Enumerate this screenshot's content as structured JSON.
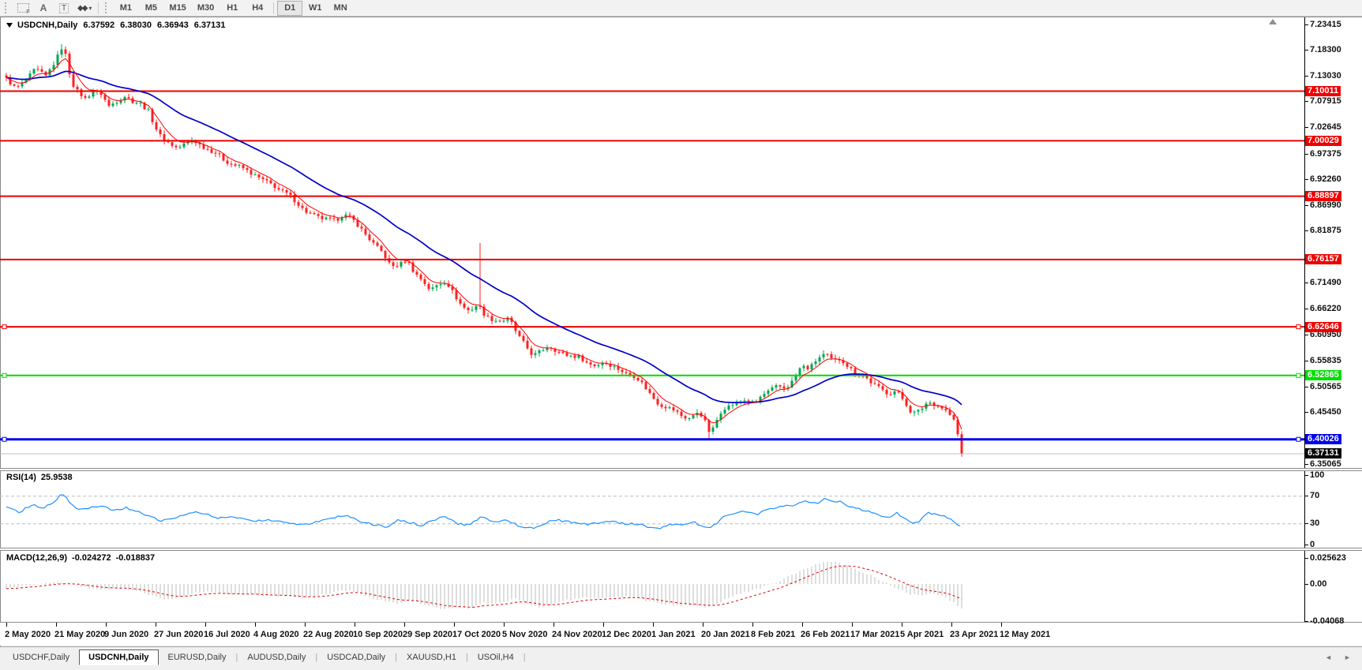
{
  "toolbar": {
    "tools": [
      {
        "id": "snap-grid-f",
        "label": "F"
      },
      {
        "id": "text-label",
        "label": "A"
      },
      {
        "id": "text-box",
        "label": "T"
      },
      {
        "id": "arrow-tools",
        "label": "◆◆",
        "dropdown": "▾"
      }
    ],
    "timeframes": [
      "M1",
      "M5",
      "M15",
      "M30",
      "H1",
      "H4",
      "D1",
      "W1",
      "MN"
    ],
    "active_timeframe": "D1"
  },
  "chart": {
    "symbol": "USDCNH,Daily",
    "ohlc": {
      "open": "6.37592",
      "high": "6.38030",
      "low": "6.36943",
      "close": "6.37131"
    },
    "price_axis": {
      "ticks": [
        "7.23415",
        "7.18300",
        "7.13030",
        "7.07915",
        "7.02645",
        "6.97375",
        "6.92260",
        "6.86990",
        "6.81875",
        "6.71490",
        "6.66220",
        "6.60950",
        "6.55835",
        "6.50565",
        "6.45450",
        "6.35065"
      ]
    },
    "chart_data": {
      "type": "candlestick",
      "symbol": "USDCNH",
      "timeframe": "Daily",
      "y_range": {
        "max": 7.23415,
        "min": 6.35065
      },
      "x_range_dates": [
        "2 May 2020",
        "12 May 2021"
      ],
      "bid": {
        "label": "6.37131",
        "value": 6.37131,
        "chip_bg": "#000000"
      },
      "colors": {
        "up": "#00a651",
        "down": "#ff2020",
        "ma_fast": "#ff0000",
        "ma_slow": "#0000c8",
        "bid_line": "#c0c0c0"
      },
      "horizontal_lines": [
        {
          "label": "7.10011",
          "value": 7.10011,
          "color": "#ee0000",
          "thickness": 2,
          "selected": false
        },
        {
          "label": "7.00029",
          "value": 7.00029,
          "color": "#ee0000",
          "thickness": 2,
          "selected": false
        },
        {
          "label": "6.88897",
          "value": 6.88897,
          "color": "#ee0000",
          "thickness": 2,
          "selected": false
        },
        {
          "label": "6.76157",
          "value": 6.76157,
          "color": "#ee0000",
          "thickness": 2,
          "selected": false
        },
        {
          "label": "6.62646",
          "value": 6.62646,
          "color": "#ee0000",
          "thickness": 2,
          "selected": true
        },
        {
          "label": "6.52865",
          "value": 6.52865,
          "color": "#00dd00",
          "thickness": 2,
          "selected": true
        },
        {
          "label": "6.40026",
          "value": 6.40026,
          "color": "#0000ee",
          "thickness": 3,
          "selected": true
        }
      ],
      "close_path_anchors": [
        [
          8,
          7.125
        ],
        [
          20,
          7.105
        ],
        [
          32,
          7.12
        ],
        [
          45,
          7.145
        ],
        [
          58,
          7.13
        ],
        [
          70,
          7.16
        ],
        [
          78,
          7.187
        ],
        [
          84,
          7.17
        ],
        [
          90,
          7.12
        ],
        [
          98,
          7.1
        ],
        [
          108,
          7.085
        ],
        [
          118,
          7.1
        ],
        [
          128,
          7.095
        ],
        [
          138,
          7.07
        ],
        [
          148,
          7.08
        ],
        [
          158,
          7.09
        ],
        [
          168,
          7.08
        ],
        [
          178,
          7.075
        ],
        [
          188,
          7.06
        ],
        [
          196,
          7.03
        ],
        [
          205,
          7.005
        ],
        [
          215,
          6.995
        ],
        [
          225,
          6.985
        ],
        [
          235,
          6.995
        ],
        [
          245,
          7.002
        ],
        [
          255,
          6.99
        ],
        [
          265,
          6.982
        ],
        [
          275,
          6.975
        ],
        [
          285,
          6.96
        ],
        [
          295,
          6.952
        ],
        [
          305,
          6.948
        ],
        [
          315,
          6.938
        ],
        [
          325,
          6.928
        ],
        [
          335,
          6.92
        ],
        [
          345,
          6.912
        ],
        [
          355,
          6.9
        ],
        [
          365,
          6.893
        ],
        [
          375,
          6.878
        ],
        [
          385,
          6.86
        ],
        [
          395,
          6.852
        ],
        [
          405,
          6.845
        ],
        [
          415,
          6.842
        ],
        [
          425,
          6.84
        ],
        [
          435,
          6.852
        ],
        [
          445,
          6.845
        ],
        [
          455,
          6.828
        ],
        [
          465,
          6.808
        ],
        [
          475,
          6.79
        ],
        [
          485,
          6.775
        ],
        [
          495,
          6.748
        ],
        [
          505,
          6.75
        ],
        [
          515,
          6.762
        ],
        [
          525,
          6.735
        ],
        [
          535,
          6.72
        ],
        [
          545,
          6.7
        ],
        [
          555,
          6.712
        ],
        [
          565,
          6.718
        ],
        [
          575,
          6.692
        ],
        [
          585,
          6.668
        ],
        [
          595,
          6.658
        ],
        [
          605,
          6.672
        ],
        [
          615,
          6.648
        ],
        [
          625,
          6.64
        ],
        [
          635,
          6.638
        ],
        [
          645,
          6.643
        ],
        [
          655,
          6.612
        ],
        [
          665,
          6.59
        ],
        [
          675,
          6.568
        ],
        [
          685,
          6.578
        ],
        [
          695,
          6.588
        ],
        [
          705,
          6.578
        ],
        [
          715,
          6.57
        ],
        [
          725,
          6.568
        ],
        [
          735,
          6.565
        ],
        [
          745,
          6.552
        ],
        [
          755,
          6.548
        ],
        [
          765,
          6.556
        ],
        [
          775,
          6.548
        ],
        [
          785,
          6.54
        ],
        [
          795,
          6.53
        ],
        [
          805,
          6.527
        ],
        [
          815,
          6.51
        ],
        [
          825,
          6.488
        ],
        [
          835,
          6.47
        ],
        [
          845,
          6.465
        ],
        [
          855,
          6.458
        ],
        [
          865,
          6.445
        ],
        [
          875,
          6.442
        ],
        [
          885,
          6.458
        ],
        [
          895,
          6.43
        ],
        [
          900,
          6.408
        ],
        [
          905,
          6.43
        ],
        [
          915,
          6.462
        ],
        [
          925,
          6.468
        ],
        [
          935,
          6.475
        ],
        [
          945,
          6.48
        ],
        [
          955,
          6.472
        ],
        [
          965,
          6.488
        ],
        [
          975,
          6.498
        ],
        [
          985,
          6.508
        ],
        [
          995,
          6.502
        ],
        [
          1005,
          6.52
        ],
        [
          1015,
          6.548
        ],
        [
          1025,
          6.542
        ],
        [
          1035,
          6.562
        ],
        [
          1045,
          6.572
        ],
        [
          1055,
          6.558
        ],
        [
          1065,
          6.562
        ],
        [
          1075,
          6.545
        ],
        [
          1085,
          6.532
        ],
        [
          1095,
          6.527
        ],
        [
          1105,
          6.512
        ],
        [
          1115,
          6.502
        ],
        [
          1125,
          6.492
        ],
        [
          1135,
          6.498
        ],
        [
          1145,
          6.478
        ],
        [
          1155,
          6.452
        ],
        [
          1165,
          6.458
        ],
        [
          1175,
          6.476
        ],
        [
          1185,
          6.47
        ],
        [
          1195,
          6.462
        ],
        [
          1202,
          6.452
        ],
        [
          1208,
          6.438
        ],
        [
          1213,
          6.41
        ],
        [
          1218,
          6.3713
        ]
      ]
    }
  },
  "rsi": {
    "name": "RSI(14)",
    "value": "25.9538",
    "axis": [
      "100",
      "70",
      "30",
      "0"
    ],
    "levels": [
      70,
      30
    ],
    "color": "#1e90ff",
    "range": [
      0,
      100
    ],
    "path_anchors": [
      [
        8,
        55
      ],
      [
        25,
        47
      ],
      [
        40,
        58
      ],
      [
        55,
        52
      ],
      [
        70,
        64
      ],
      [
        78,
        74
      ],
      [
        88,
        62
      ],
      [
        100,
        50
      ],
      [
        115,
        54
      ],
      [
        130,
        57
      ],
      [
        145,
        49
      ],
      [
        160,
        53
      ],
      [
        175,
        47
      ],
      [
        190,
        40
      ],
      [
        205,
        34
      ],
      [
        220,
        37
      ],
      [
        235,
        44
      ],
      [
        250,
        47
      ],
      [
        265,
        42
      ],
      [
        280,
        38
      ],
      [
        295,
        40
      ],
      [
        310,
        37
      ],
      [
        325,
        34
      ],
      [
        340,
        36
      ],
      [
        355,
        34
      ],
      [
        370,
        31
      ],
      [
        385,
        28
      ],
      [
        400,
        32
      ],
      [
        415,
        36
      ],
      [
        430,
        42
      ],
      [
        445,
        40
      ],
      [
        460,
        32
      ],
      [
        475,
        28
      ],
      [
        490,
        26
      ],
      [
        505,
        36
      ],
      [
        520,
        32
      ],
      [
        535,
        27
      ],
      [
        550,
        36
      ],
      [
        565,
        40
      ],
      [
        580,
        30
      ],
      [
        595,
        28
      ],
      [
        610,
        42
      ],
      [
        625,
        33
      ],
      [
        640,
        36
      ],
      [
        655,
        28
      ],
      [
        670,
        24
      ],
      [
        685,
        26
      ],
      [
        700,
        36
      ],
      [
        715,
        34
      ],
      [
        730,
        32
      ],
      [
        745,
        29
      ],
      [
        760,
        31
      ],
      [
        775,
        33
      ],
      [
        790,
        30
      ],
      [
        805,
        30
      ],
      [
        820,
        26
      ],
      [
        835,
        24
      ],
      [
        850,
        29
      ],
      [
        865,
        27
      ],
      [
        880,
        32
      ],
      [
        895,
        24
      ],
      [
        905,
        28
      ],
      [
        915,
        40
      ],
      [
        930,
        45
      ],
      [
        945,
        48
      ],
      [
        960,
        44
      ],
      [
        975,
        52
      ],
      [
        990,
        55
      ],
      [
        1005,
        57
      ],
      [
        1020,
        64
      ],
      [
        1035,
        59
      ],
      [
        1045,
        67
      ],
      [
        1055,
        61
      ],
      [
        1065,
        63
      ],
      [
        1075,
        54
      ],
      [
        1085,
        52
      ],
      [
        1095,
        50
      ],
      [
        1105,
        46
      ],
      [
        1115,
        43
      ],
      [
        1125,
        39
      ],
      [
        1135,
        46
      ],
      [
        1145,
        39
      ],
      [
        1155,
        31
      ],
      [
        1165,
        34
      ],
      [
        1175,
        46
      ],
      [
        1185,
        44
      ],
      [
        1195,
        41
      ],
      [
        1205,
        35
      ],
      [
        1218,
        26
      ]
    ]
  },
  "macd": {
    "name": "MACD(12,26,9)",
    "macd_value": "-0.024272",
    "signal_value": "-0.018837",
    "axis": [
      "0.025623",
      "0.00",
      "-0.04068"
    ],
    "histogram_color": "#bdbdbd",
    "signal_color": "#e00000",
    "macd_anchors": [
      [
        8,
        -0.004
      ],
      [
        40,
        -0.001
      ],
      [
        70,
        0.003
      ],
      [
        90,
        0.0
      ],
      [
        110,
        -0.004
      ],
      [
        130,
        -0.006
      ],
      [
        150,
        -0.004
      ],
      [
        170,
        -0.006
      ],
      [
        190,
        -0.011
      ],
      [
        205,
        -0.015
      ],
      [
        220,
        -0.016
      ],
      [
        235,
        -0.012
      ],
      [
        250,
        -0.009
      ],
      [
        265,
        -0.008
      ],
      [
        280,
        -0.01
      ],
      [
        295,
        -0.011
      ],
      [
        310,
        -0.01
      ],
      [
        325,
        -0.011
      ],
      [
        340,
        -0.012
      ],
      [
        355,
        -0.012
      ],
      [
        370,
        -0.013
      ],
      [
        385,
        -0.014
      ],
      [
        400,
        -0.012
      ],
      [
        415,
        -0.01
      ],
      [
        430,
        -0.007
      ],
      [
        445,
        -0.007
      ],
      [
        460,
        -0.011
      ],
      [
        475,
        -0.015
      ],
      [
        490,
        -0.018
      ],
      [
        505,
        -0.02
      ],
      [
        520,
        -0.017
      ],
      [
        535,
        -0.02
      ],
      [
        550,
        -0.024
      ],
      [
        565,
        -0.026
      ],
      [
        580,
        -0.023
      ],
      [
        595,
        -0.025
      ],
      [
        610,
        -0.019
      ],
      [
        625,
        -0.021
      ],
      [
        640,
        -0.017
      ],
      [
        655,
        -0.015
      ],
      [
        670,
        -0.021
      ],
      [
        685,
        -0.025
      ],
      [
        700,
        -0.021
      ],
      [
        715,
        -0.017
      ],
      [
        730,
        -0.015
      ],
      [
        745,
        -0.014
      ],
      [
        760,
        -0.015
      ],
      [
        775,
        -0.013
      ],
      [
        790,
        -0.013
      ],
      [
        805,
        -0.014
      ],
      [
        820,
        -0.017
      ],
      [
        835,
        -0.02
      ],
      [
        850,
        -0.021
      ],
      [
        865,
        -0.022
      ],
      [
        880,
        -0.021
      ],
      [
        895,
        -0.024
      ],
      [
        905,
        -0.022
      ],
      [
        915,
        -0.017
      ],
      [
        930,
        -0.012
      ],
      [
        945,
        -0.008
      ],
      [
        960,
        -0.005
      ],
      [
        975,
        -0.001
      ],
      [
        990,
        0.004
      ],
      [
        1005,
        0.01
      ],
      [
        1020,
        0.016
      ],
      [
        1035,
        0.02
      ],
      [
        1048,
        0.023
      ],
      [
        1060,
        0.022
      ],
      [
        1075,
        0.018
      ],
      [
        1090,
        0.013
      ],
      [
        1105,
        0.008
      ],
      [
        1120,
        0.002
      ],
      [
        1135,
        -0.004
      ],
      [
        1150,
        -0.01
      ],
      [
        1165,
        -0.012
      ],
      [
        1180,
        -0.01
      ],
      [
        1195,
        -0.013
      ],
      [
        1205,
        -0.017
      ],
      [
        1212,
        -0.021
      ],
      [
        1218,
        -0.0243
      ]
    ]
  },
  "dates": [
    "2 May 2020",
    "21 May 2020",
    "9 Jun 2020",
    "27 Jun 2020",
    "16 Jul 2020",
    "4 Aug 2020",
    "22 Aug 2020",
    "10 Sep 2020",
    "29 Sep 2020",
    "17 Oct 2020",
    "5 Nov 2020",
    "24 Nov 2020",
    "12 Dec 2020",
    "1 Jan 2021",
    "20 Jan 2021",
    "8 Feb 2021",
    "26 Feb 2021",
    "17 Mar 2021",
    "5 Apr 2021",
    "23 Apr 2021",
    "12 May 2021"
  ],
  "tabs": {
    "items": [
      "USDCHF,Daily",
      "USDCNH,Daily",
      "EURUSD,Daily",
      "AUDUSD,Daily",
      "USDCAD,Daily",
      "XAUUSD,H1",
      "USOil,H4"
    ],
    "active": "USDCNH,Daily"
  }
}
